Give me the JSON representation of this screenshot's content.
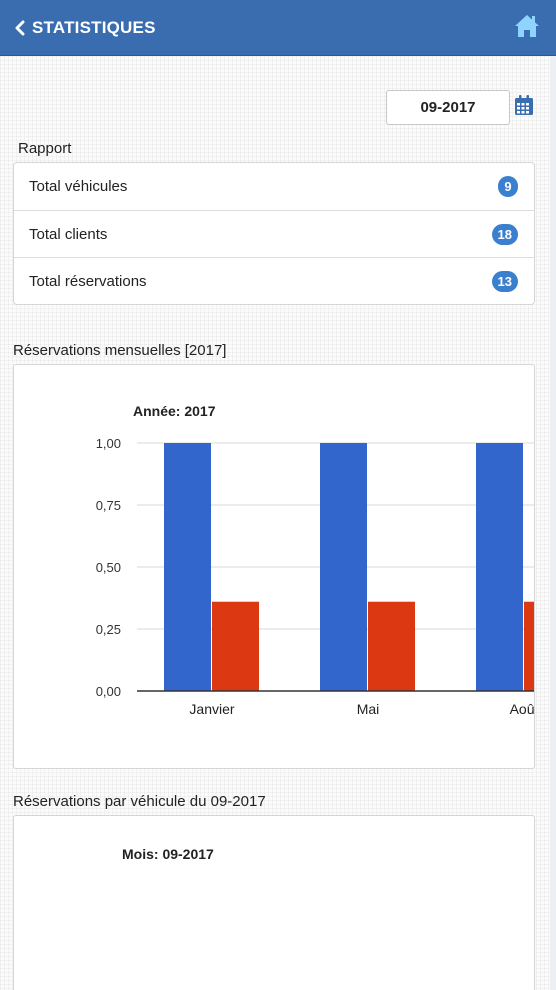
{
  "header": {
    "title": "STATISTIQUES",
    "back_icon": "chevron-left-icon",
    "home_icon": "home-icon",
    "color": "#3a6db0"
  },
  "filter": {
    "month_value": "09-2017",
    "calendar_icon": "calendar-icon"
  },
  "report": {
    "label": "Rapport",
    "items": [
      {
        "label": "Total véhicules",
        "count": "9"
      },
      {
        "label": "Total clients",
        "count": "18"
      },
      {
        "label": "Total réservations",
        "count": "13"
      }
    ],
    "badge_color": "#3b7fcf"
  },
  "monthly": {
    "section_label": "Réservations mensuelles [2017]",
    "chart_data": {
      "type": "bar",
      "title": "Année: 2017",
      "categories": [
        "Janvier",
        "Mai",
        "Août"
      ],
      "series": [
        {
          "values": [
            1.0,
            1.0,
            1.0
          ],
          "color": "#3366cc"
        },
        {
          "values": [
            0.36,
            0.36,
            0.36
          ],
          "color": "#dc3912"
        }
      ],
      "ylim": [
        0,
        1
      ],
      "yticks": [
        "0,00",
        "0,25",
        "0,50",
        "0,75",
        "1,00"
      ],
      "grid": true
    }
  },
  "per_vehicle": {
    "section_label": "Réservations par véhicule du 09-2017",
    "chart_title": "Mois: 09-2017"
  }
}
